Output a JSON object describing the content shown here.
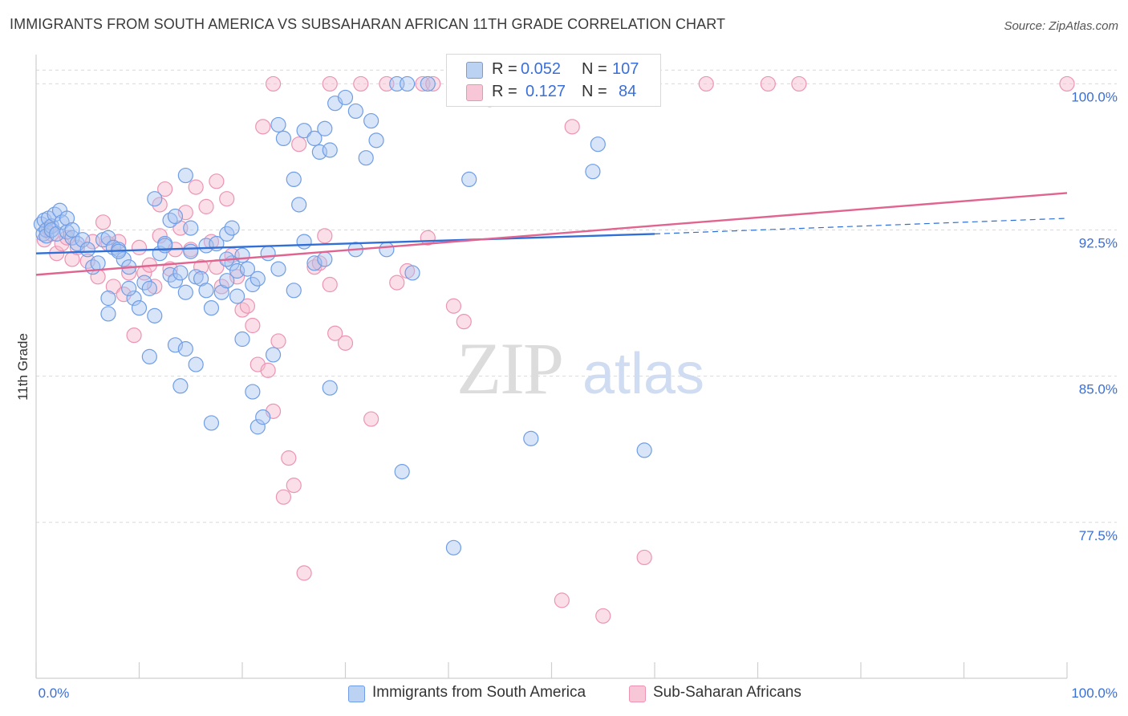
{
  "header": {
    "title": "IMMIGRANTS FROM SOUTH AMERICA VS SUBSAHARAN AFRICAN 11TH GRADE CORRELATION CHART",
    "source": "Source: ZipAtlas.com"
  },
  "watermark": {
    "zip": "ZIP",
    "atlas": "atlas"
  },
  "legend": {
    "rows": [
      {
        "r_label": "R =",
        "r_value": "0.052",
        "n_label": "N =",
        "n_value": "107"
      },
      {
        "r_label": "R =",
        "r_value": "0.127",
        "n_label": "N =",
        "n_value": "84"
      }
    ]
  },
  "colors": {
    "blue_fill": "#a9c4ef",
    "blue_stroke": "#6f9ee6",
    "blue_line": "#2f6fd6",
    "pink_fill": "#f6b9cd",
    "pink_stroke": "#ec94b3",
    "pink_line": "#e0648f",
    "tick_label": "#3a6fd8",
    "grid": "#d9d9d9"
  },
  "chart_data": {
    "type": "scatter",
    "title": "IMMIGRANTS FROM SOUTH AMERICA VS SUBSAHARAN AFRICAN 11TH GRADE CORRELATION CHART",
    "xlabel": "",
    "ylabel": "11th Grade",
    "xlim": [
      0,
      100
    ],
    "ylim": [
      69.5,
      101.5
    ],
    "x_tick_labels": [
      "0.0%",
      "100.0%"
    ],
    "y_ticks": [
      77.5,
      85.0,
      92.5,
      100.0
    ],
    "y_tick_labels": [
      "77.5%",
      "85.0%",
      "92.5%",
      "100.0%"
    ],
    "grid": true,
    "legend_position": "top-center",
    "series": [
      {
        "name": "Immigrants from South America",
        "color": "blue",
        "r": 0.052,
        "n": 107,
        "trend": {
          "x0": 0,
          "y0": 91.3,
          "x1": 60,
          "y1": 92.3,
          "dash_to_x": 100,
          "dash_to_y": 93.1
        },
        "points": [
          [
            0.5,
            92.8
          ],
          [
            0.7,
            92.3
          ],
          [
            0.8,
            93.0
          ],
          [
            1.0,
            92.5
          ],
          [
            1.0,
            92.2
          ],
          [
            1.2,
            93.1
          ],
          [
            1.5,
            92.7
          ],
          [
            1.5,
            92.5
          ],
          [
            1.8,
            93.3
          ],
          [
            2.0,
            92.3
          ],
          [
            2.3,
            93.5
          ],
          [
            2.5,
            92.9
          ],
          [
            3.0,
            92.4
          ],
          [
            3.0,
            93.1
          ],
          [
            3.5,
            92.1
          ],
          [
            3.5,
            92.5
          ],
          [
            4.0,
            91.8
          ],
          [
            4.5,
            92.0
          ],
          [
            5.0,
            91.5
          ],
          [
            5.5,
            90.6
          ],
          [
            6.0,
            90.8
          ],
          [
            6.5,
            92.0
          ],
          [
            7.0,
            92.1
          ],
          [
            7.5,
            91.6
          ],
          [
            8.0,
            91.5
          ],
          [
            8.5,
            91.0
          ],
          [
            9.0,
            90.6
          ],
          [
            9.5,
            89.0
          ],
          [
            10.0,
            88.5
          ],
          [
            10.5,
            89.8
          ],
          [
            7.0,
            89.0
          ],
          [
            7.0,
            88.2
          ],
          [
            8.0,
            91.4
          ],
          [
            9.0,
            89.5
          ],
          [
            11.0,
            89.5
          ],
          [
            12.0,
            91.3
          ],
          [
            12.5,
            91.8
          ],
          [
            13.0,
            90.2
          ],
          [
            13.5,
            89.9
          ],
          [
            14.0,
            90.3
          ],
          [
            14.5,
            89.3
          ],
          [
            15.0,
            91.4
          ],
          [
            15.5,
            90.1
          ],
          [
            16.0,
            90.0
          ],
          [
            16.5,
            89.4
          ],
          [
            17.0,
            88.5
          ],
          [
            18.0,
            89.3
          ],
          [
            18.5,
            89.9
          ],
          [
            19.0,
            90.8
          ],
          [
            19.5,
            90.4
          ],
          [
            20.0,
            91.2
          ],
          [
            20.5,
            90.5
          ],
          [
            21.0,
            89.7
          ],
          [
            21.5,
            90.0
          ],
          [
            22.5,
            91.3
          ],
          [
            23.5,
            90.5
          ],
          [
            25.0,
            89.4
          ],
          [
            26.0,
            91.9
          ],
          [
            27.0,
            90.8
          ],
          [
            28.0,
            91.0
          ],
          [
            13.0,
            93.0
          ],
          [
            13.5,
            93.2
          ],
          [
            14.5,
            95.3
          ],
          [
            11.5,
            94.1
          ],
          [
            12.5,
            91.7
          ],
          [
            15.0,
            92.6
          ],
          [
            16.5,
            91.7
          ],
          [
            17.5,
            91.8
          ],
          [
            18.5,
            92.3
          ],
          [
            19.0,
            92.6
          ],
          [
            11.0,
            86.0
          ],
          [
            11.5,
            88.1
          ],
          [
            13.5,
            86.6
          ],
          [
            14.0,
            84.5
          ],
          [
            14.5,
            86.4
          ],
          [
            15.5,
            85.6
          ],
          [
            17.0,
            82.6
          ],
          [
            18.5,
            91.0
          ],
          [
            19.5,
            89.1
          ],
          [
            20.0,
            86.9
          ],
          [
            21.0,
            84.2
          ],
          [
            21.5,
            82.4
          ],
          [
            22.0,
            82.9
          ],
          [
            23.0,
            86.1
          ],
          [
            28.5,
            84.4
          ],
          [
            23.5,
            97.9
          ],
          [
            24.0,
            97.2
          ],
          [
            25.0,
            95.1
          ],
          [
            25.5,
            93.8
          ],
          [
            26.0,
            97.6
          ],
          [
            27.0,
            97.2
          ],
          [
            27.5,
            96.5
          ],
          [
            28.0,
            97.7
          ],
          [
            28.5,
            96.6
          ],
          [
            29.0,
            99.0
          ],
          [
            30.0,
            99.3
          ],
          [
            31.0,
            98.6
          ],
          [
            32.0,
            96.2
          ],
          [
            32.5,
            98.1
          ],
          [
            33.0,
            97.1
          ],
          [
            34.0,
            91.5
          ],
          [
            35.0,
            100.0
          ],
          [
            36.0,
            100.0
          ],
          [
            38.0,
            100.0
          ],
          [
            42.0,
            95.1
          ],
          [
            48.0,
            81.8
          ],
          [
            54.0,
            95.5
          ],
          [
            54.5,
            96.9
          ],
          [
            59.0,
            81.2
          ],
          [
            40.5,
            76.2
          ],
          [
            35.5,
            80.1
          ],
          [
            31.0,
            91.5
          ],
          [
            36.5,
            90.3
          ]
        ]
      },
      {
        "name": "Sub-Saharan Africans",
        "color": "pink",
        "r": 0.127,
        "n": 84,
        "trend": {
          "x0": 0,
          "y0": 90.2,
          "x1": 100,
          "y1": 94.4
        },
        "points": [
          [
            0.8,
            92.0
          ],
          [
            1.2,
            92.6
          ],
          [
            1.5,
            92.3
          ],
          [
            2.0,
            91.3
          ],
          [
            2.5,
            91.8
          ],
          [
            3.0,
            92.1
          ],
          [
            3.5,
            91.0
          ],
          [
            4.0,
            91.6
          ],
          [
            5.0,
            90.9
          ],
          [
            5.5,
            91.9
          ],
          [
            6.0,
            90.1
          ],
          [
            6.5,
            92.9
          ],
          [
            7.0,
            91.8
          ],
          [
            7.5,
            89.6
          ],
          [
            8.0,
            91.9
          ],
          [
            8.5,
            89.2
          ],
          [
            9.0,
            90.3
          ],
          [
            9.5,
            87.1
          ],
          [
            10.0,
            91.6
          ],
          [
            10.5,
            90.3
          ],
          [
            11.0,
            90.7
          ],
          [
            11.5,
            89.6
          ],
          [
            12.0,
            92.2
          ],
          [
            12.5,
            94.6
          ],
          [
            13.0,
            90.5
          ],
          [
            13.5,
            91.5
          ],
          [
            14.0,
            92.6
          ],
          [
            14.5,
            93.4
          ],
          [
            15.0,
            91.5
          ],
          [
            15.5,
            94.7
          ],
          [
            16.0,
            90.6
          ],
          [
            16.5,
            93.7
          ],
          [
            17.0,
            91.9
          ],
          [
            17.5,
            90.6
          ],
          [
            18.0,
            89.6
          ],
          [
            18.5,
            94.1
          ],
          [
            19.0,
            91.2
          ],
          [
            19.5,
            90.1
          ],
          [
            20.0,
            88.4
          ],
          [
            20.5,
            88.6
          ],
          [
            21.0,
            87.6
          ],
          [
            21.5,
            85.6
          ],
          [
            22.5,
            85.3
          ],
          [
            23.0,
            83.2
          ],
          [
            23.5,
            86.8
          ],
          [
            24.0,
            78.8
          ],
          [
            24.5,
            80.8
          ],
          [
            25.0,
            79.4
          ],
          [
            26.0,
            74.9
          ],
          [
            27.0,
            90.6
          ],
          [
            27.5,
            90.8
          ],
          [
            28.0,
            92.2
          ],
          [
            28.5,
            89.7
          ],
          [
            29.0,
            87.2
          ],
          [
            30.0,
            86.7
          ],
          [
            32.5,
            82.8
          ],
          [
            35.0,
            89.8
          ],
          [
            38.0,
            92.1
          ],
          [
            40.5,
            88.6
          ],
          [
            41.5,
            87.8
          ],
          [
            44.0,
            99.2
          ],
          [
            46.0,
            99.9
          ],
          [
            52.0,
            97.8
          ],
          [
            51.0,
            73.5
          ],
          [
            55.0,
            72.7
          ],
          [
            59.0,
            75.7
          ],
          [
            65.0,
            100.0
          ],
          [
            71.0,
            100.0
          ],
          [
            74.0,
            100.0
          ],
          [
            100.0,
            100.0
          ],
          [
            23.0,
            100.0
          ],
          [
            28.5,
            100.0
          ],
          [
            34.0,
            100.0
          ],
          [
            37.5,
            100.0
          ],
          [
            41.5,
            100.0
          ],
          [
            45.0,
            100.0
          ],
          [
            31.5,
            100.0
          ],
          [
            38.5,
            100.0
          ],
          [
            17.5,
            95.0
          ],
          [
            22.0,
            97.8
          ],
          [
            25.5,
            96.9
          ],
          [
            36.0,
            90.4
          ],
          [
            12.0,
            93.8
          ]
        ]
      }
    ]
  },
  "bottom_legend": [
    {
      "label": "Immigrants from South America"
    },
    {
      "label": "Sub-Saharan Africans"
    }
  ]
}
